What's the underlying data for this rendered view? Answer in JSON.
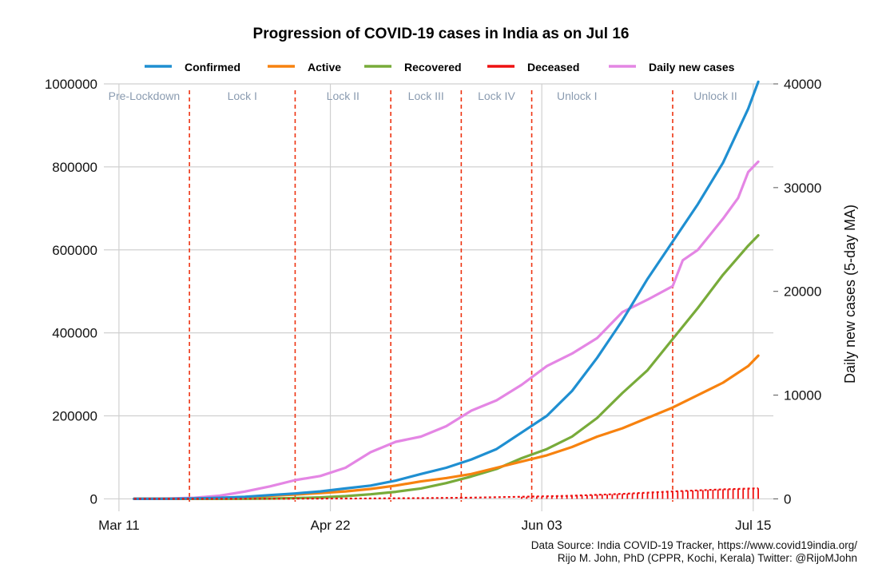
{
  "chart_data": {
    "type": "line",
    "title": "Progression of COVID-19 cases in India as on Jul 16",
    "x_ticks": [
      {
        "label": "Mar 11",
        "day": 0
      },
      {
        "label": "Apr 22",
        "day": 42
      },
      {
        "label": "Jun 03",
        "day": 84
      },
      {
        "label": "Jul 15",
        "day": 126
      }
    ],
    "x_range_days": [
      -3,
      130
    ],
    "y_left": {
      "label": "",
      "lim": [
        -30000,
        1000000
      ],
      "ticks": [
        0,
        200000,
        400000,
        600000,
        800000,
        1000000
      ]
    },
    "y_right": {
      "label": "Daily new cases (5-day MA)",
      "lim": [
        -1200,
        40000
      ],
      "ticks": [
        0,
        10000,
        20000,
        30000,
        40000
      ]
    },
    "legend": [
      {
        "name": "Confirmed",
        "color": "#1f8fd1"
      },
      {
        "name": "Active",
        "color": "#f7820f"
      },
      {
        "name": "Recovered",
        "color": "#78ab3a"
      },
      {
        "name": "Deceased",
        "color": "#ee1111"
      },
      {
        "name": "Daily new cases",
        "color": "#e486e4"
      }
    ],
    "phase_lines_day": [
      14,
      35,
      54,
      68,
      82,
      110
    ],
    "phases": [
      {
        "label": "Pre-Lockdown",
        "day": 5
      },
      {
        "label": "Lock I",
        "day": 24.5
      },
      {
        "label": "Lock II",
        "day": 44.5
      },
      {
        "label": "Lock III",
        "day": 61
      },
      {
        "label": "Lock IV",
        "day": 75
      },
      {
        "label": "Unlock I",
        "day": 91
      },
      {
        "label": "Unlock II",
        "day": 118.5
      }
    ],
    "series": [
      {
        "name": "Confirmed",
        "axis": "left",
        "x": [
          3,
          10,
          15,
          20,
          25,
          30,
          35,
          40,
          45,
          50,
          55,
          60,
          65,
          70,
          75,
          80,
          85,
          90,
          95,
          100,
          105,
          110,
          115,
          120,
          125,
          127
        ],
        "y": [
          0,
          300,
          1000,
          2500,
          5000,
          9000,
          13000,
          18000,
          25000,
          32000,
          44000,
          60000,
          75000,
          95000,
          120000,
          160000,
          200000,
          260000,
          340000,
          430000,
          530000,
          620000,
          710000,
          810000,
          940000,
          1005000
        ]
      },
      {
        "name": "Active",
        "axis": "left",
        "x": [
          3,
          10,
          15,
          20,
          25,
          30,
          35,
          40,
          45,
          50,
          55,
          60,
          65,
          70,
          75,
          80,
          85,
          90,
          95,
          100,
          105,
          110,
          115,
          120,
          125,
          127
        ],
        "y": [
          0,
          300,
          900,
          2000,
          4500,
          7500,
          10500,
          14000,
          18000,
          24000,
          32000,
          42000,
          50000,
          60000,
          75000,
          90000,
          105000,
          125000,
          150000,
          170000,
          195000,
          220000,
          250000,
          280000,
          320000,
          345000
        ]
      },
      {
        "name": "Recovered",
        "axis": "left",
        "x": [
          3,
          10,
          15,
          20,
          25,
          30,
          35,
          40,
          45,
          50,
          55,
          60,
          65,
          70,
          75,
          80,
          85,
          90,
          95,
          100,
          105,
          110,
          115,
          120,
          125,
          127
        ],
        "y": [
          0,
          0,
          0,
          100,
          300,
          800,
          1800,
          3500,
          6500,
          11000,
          17000,
          25000,
          38000,
          54000,
          72000,
          98000,
          120000,
          150000,
          195000,
          255000,
          310000,
          385000,
          460000,
          540000,
          610000,
          635000
        ]
      },
      {
        "name": "Deceased",
        "axis": "left",
        "x": [
          3,
          20,
          35,
          50,
          60,
          70,
          80,
          90,
          100,
          110,
          120,
          127
        ],
        "y": [
          0,
          50,
          400,
          1000,
          1800,
          3000,
          5000,
          7500,
          12000,
          18000,
          23000,
          25500
        ]
      },
      {
        "name": "Daily new cases",
        "axis": "right",
        "x": [
          3,
          10,
          15,
          20,
          25,
          30,
          35,
          40,
          45,
          50,
          55,
          60,
          65,
          70,
          75,
          80,
          85,
          90,
          95,
          100,
          105,
          110,
          112,
          115,
          120,
          123,
          125,
          127
        ],
        "y": [
          0,
          30,
          100,
          300,
          700,
          1200,
          1800,
          2200,
          3000,
          4500,
          5500,
          6000,
          7000,
          8500,
          9500,
          11000,
          12800,
          14000,
          15500,
          18000,
          19200,
          20500,
          23000,
          24000,
          27000,
          29000,
          31500,
          32500
        ]
      }
    ]
  },
  "source": {
    "line1": "Data Source: India COVID-19 Tracker, https://www.covid19india.org/",
    "line2": "Rijo M. John, PhD (CPPR, Kochi, Kerala) Twitter: @RijoMJohn"
  }
}
